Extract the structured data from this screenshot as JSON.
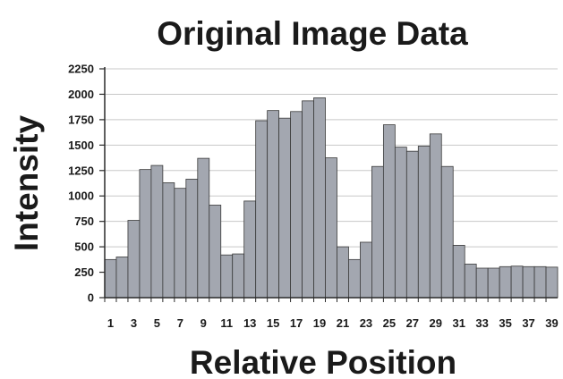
{
  "chart_data": {
    "type": "bar",
    "title": "Original Image Data",
    "xlabel": "Relative Position",
    "ylabel": "Intensity",
    "categories": [
      1,
      2,
      3,
      4,
      5,
      6,
      7,
      8,
      9,
      10,
      11,
      12,
      13,
      14,
      15,
      16,
      17,
      18,
      19,
      20,
      21,
      22,
      23,
      24,
      25,
      26,
      27,
      28,
      29,
      30,
      31,
      32,
      33,
      34,
      35,
      36,
      37,
      38,
      39
    ],
    "x_tick_labels": [
      "1",
      "3",
      "5",
      "7",
      "9",
      "11",
      "13",
      "15",
      "17",
      "19",
      "21",
      "23",
      "25",
      "27",
      "29",
      "31",
      "33",
      "35",
      "37",
      "39"
    ],
    "values": [
      375,
      400,
      760,
      1260,
      1300,
      1130,
      1075,
      1165,
      1370,
      910,
      420,
      430,
      950,
      1740,
      1840,
      1765,
      1830,
      1935,
      1965,
      1375,
      500,
      375,
      545,
      1290,
      1700,
      1480,
      1440,
      1490,
      1610,
      1290,
      515,
      330,
      290,
      290,
      305,
      310,
      305,
      305,
      300
    ],
    "ylim": [
      0,
      2250
    ],
    "y_ticks": [
      0,
      250,
      500,
      750,
      1000,
      1250,
      1500,
      1750,
      2000,
      2250
    ],
    "grid": true,
    "colors": {
      "bar_fill": "#a3a7b0",
      "bar_stroke": "#3a3a3a",
      "grid": "#c8c8c8",
      "axis": "#2a2a2a",
      "text": "#1a1a1a"
    }
  }
}
